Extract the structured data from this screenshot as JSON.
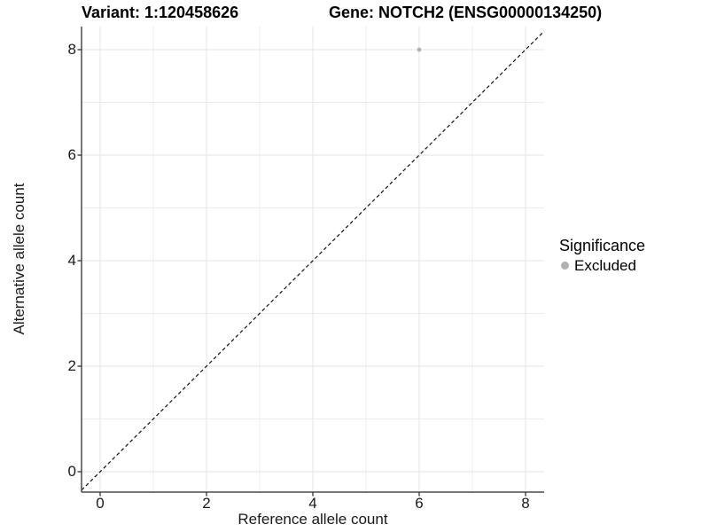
{
  "title": {
    "variant": "Variant: 1:120458626",
    "gene": "Gene: NOTCH2 (ENSG00000134250)"
  },
  "chart_data": {
    "type": "scatter",
    "title_left": "Variant: 1:120458626",
    "title_right": "Gene: NOTCH2 (ENSG00000134250)",
    "xlabel": "Reference allele count",
    "ylabel": "Alternative allele count",
    "xlim": [
      -0.35,
      8.35
    ],
    "ylim": [
      -0.39,
      8.44
    ],
    "x_ticks": [
      0,
      2,
      4,
      6,
      8
    ],
    "y_ticks": [
      0,
      2,
      4,
      6,
      8
    ],
    "x_minor_gridlines": [
      1,
      3,
      5,
      7
    ],
    "y_minor_gridlines": [
      1,
      3,
      5,
      7
    ],
    "grid": true,
    "identity_line": {
      "type": "y=x",
      "style": "dashed"
    },
    "series": [
      {
        "name": "Excluded",
        "color": "#b3b3b3",
        "points": [
          {
            "x": 6,
            "y": 8
          }
        ]
      }
    ],
    "legend": {
      "title": "Significance",
      "position": "right",
      "entries": [
        {
          "label": "Excluded",
          "color": "#b0b0b0"
        }
      ]
    }
  },
  "colors": {
    "background": "#ffffff",
    "grid_major": "#e5e5e5",
    "grid_minor": "#ececec",
    "axis_line": "#4a4a4a",
    "tick_mark": "#333333",
    "dashed_line": "#111111",
    "point": "#b3b3b3"
  }
}
